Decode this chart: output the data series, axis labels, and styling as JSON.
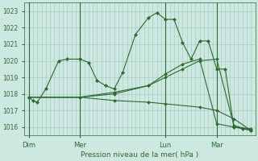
{
  "xlabel": "Pression niveau de la mer( hPa )",
  "bg_color": "#cce8e0",
  "line_color": "#2d6a2d",
  "grid_color": "#a8ccc4",
  "text_color": "#2d6a2d",
  "ylim": [
    1015.5,
    1023.5
  ],
  "yticks": [
    1016,
    1017,
    1018,
    1019,
    1020,
    1021,
    1022,
    1023
  ],
  "xtick_labels": [
    "Dim",
    "Mer",
    "Lun",
    "Mar"
  ],
  "xtick_positions": [
    0,
    24,
    64,
    88
  ],
  "total_points": 104,
  "vlines": [
    0,
    24,
    64,
    88
  ],
  "series": [
    {
      "x": [
        0,
        2,
        4,
        8,
        14,
        18,
        24,
        28,
        32,
        36,
        40,
        44,
        50,
        56,
        60,
        64,
        68,
        72,
        76,
        80,
        84,
        88,
        92,
        96,
        100,
        104
      ],
      "y": [
        1017.8,
        1017.6,
        1017.5,
        1018.3,
        1020.0,
        1020.1,
        1020.1,
        1019.9,
        1018.8,
        1018.5,
        1018.3,
        1019.3,
        1021.6,
        1022.6,
        1022.9,
        1022.5,
        1022.5,
        1021.1,
        1020.1,
        1021.2,
        1021.2,
        1019.5,
        1019.5,
        1016.0,
        1015.9,
        1015.8
      ]
    },
    {
      "x": [
        0,
        24,
        40,
        56,
        64,
        72,
        80,
        88,
        96,
        104
      ],
      "y": [
        1017.8,
        1017.8,
        1018.0,
        1018.5,
        1019.0,
        1019.5,
        1020.0,
        1020.1,
        1016.1,
        1015.8
      ]
    },
    {
      "x": [
        0,
        24,
        40,
        56,
        64,
        80,
        88,
        96,
        104
      ],
      "y": [
        1017.8,
        1017.8,
        1017.6,
        1017.5,
        1017.4,
        1017.2,
        1017.0,
        1016.5,
        1015.8
      ]
    },
    {
      "x": [
        0,
        24,
        40,
        56,
        64,
        72,
        80,
        88,
        96,
        104
      ],
      "y": [
        1017.8,
        1017.8,
        1018.1,
        1018.5,
        1019.2,
        1019.8,
        1020.1,
        1016.2,
        1016.0,
        1015.9
      ]
    }
  ]
}
